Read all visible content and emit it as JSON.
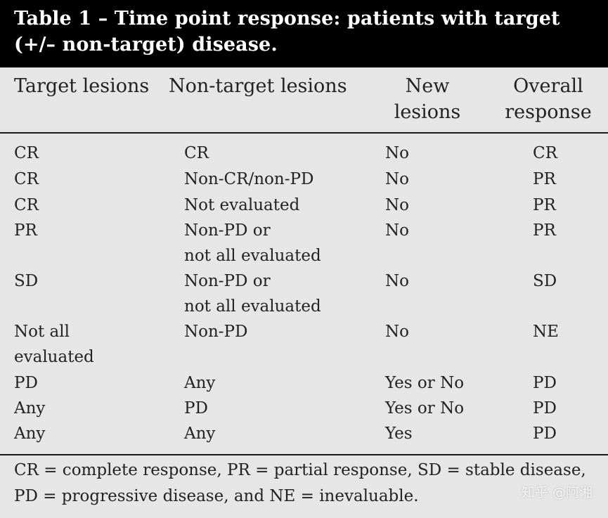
{
  "title": "Table 1 – Time point response: patients with target (+/– non-target) disease.",
  "columns": [
    "Target lesions",
    "Non-target lesions",
    "New\nlesions",
    "Overall\nresponse"
  ],
  "rows": [
    {
      "target": "CR",
      "nontarget": "CR",
      "new": "No",
      "overall": "CR"
    },
    {
      "target": "CR",
      "nontarget": "Non-CR/non-PD",
      "new": "No",
      "overall": "PR"
    },
    {
      "target": "CR",
      "nontarget": "Not evaluated",
      "new": "No",
      "overall": "PR"
    },
    {
      "target": "PR",
      "nontarget": "Non-PD or\nnot all evaluated",
      "new": "No",
      "overall": "PR"
    },
    {
      "target": "SD",
      "nontarget": "Non-PD or\nnot all evaluated",
      "new": "No",
      "overall": "SD"
    },
    {
      "target": "Not all\nevaluated",
      "nontarget": "Non-PD",
      "new": "No",
      "overall": "NE"
    },
    {
      "target": "PD",
      "nontarget": "Any",
      "new": "Yes or No",
      "overall": "PD"
    },
    {
      "target": "Any",
      "nontarget": "PD",
      "new": "Yes or No",
      "overall": "PD"
    },
    {
      "target": "Any",
      "nontarget": "Any",
      "new": "Yes",
      "overall": "PD"
    }
  ],
  "footnote": "CR = complete response, PR = partial response, SD = stable disease, PD = progressive disease, and NE = inevaluable.",
  "watermark": "知乎 @阿湘",
  "colors": {
    "title_bg": "#000000",
    "table_bg": "#e6e6e6",
    "text": "#1a1a1a"
  }
}
